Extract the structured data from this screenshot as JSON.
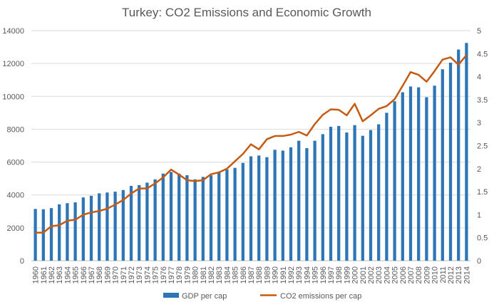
{
  "chart_data": {
    "type": "bar+line",
    "title": "Turkey: CO2 Emissions and Economic Growth",
    "xlabel": "",
    "ylabel": "",
    "y2label": "",
    "ylim": [
      0,
      14000
    ],
    "y2lim": [
      0,
      5
    ],
    "yticks": [
      "0",
      "2000",
      "4000",
      "6000",
      "8000",
      "10000",
      "12000",
      "14000"
    ],
    "y2ticks": [
      "0",
      "0.5",
      "1",
      "1.5",
      "2",
      "2.5",
      "3",
      "3.5",
      "4",
      "4.5",
      "5"
    ],
    "grid": true,
    "legend_position": "bottom",
    "categories": [
      "1960",
      "1961",
      "1962",
      "1963",
      "1964",
      "1965",
      "1966",
      "1967",
      "1968",
      "1969",
      "1970",
      "1971",
      "1972",
      "1973",
      "1974",
      "1975",
      "1976",
      "1977",
      "1978",
      "1979",
      "1980",
      "1981",
      "1982",
      "1983",
      "1984",
      "1985",
      "1986",
      "1987",
      "1988",
      "1989",
      "1990",
      "1991",
      "1992",
      "1993",
      "1994",
      "1995",
      "1996",
      "1997",
      "1998",
      "1999",
      "2000",
      "2001",
      "2002",
      "2003",
      "2004",
      "2005",
      "2006",
      "2007",
      "2008",
      "2009",
      "2010",
      "2011",
      "2012",
      "2013",
      "2014"
    ],
    "series": [
      {
        "name": "GDP per cap",
        "type": "bar",
        "axis": "left",
        "color": "#2e75b6",
        "values": [
          3150,
          3130,
          3200,
          3430,
          3500,
          3550,
          3850,
          3950,
          4100,
          4150,
          4200,
          4300,
          4550,
          4600,
          4750,
          4950,
          5300,
          5400,
          5300,
          5200,
          4950,
          5100,
          5200,
          5400,
          5550,
          5650,
          5950,
          6350,
          6400,
          6300,
          6750,
          6700,
          6900,
          7300,
          6850,
          7300,
          7700,
          8150,
          8200,
          7800,
          8250,
          7600,
          7950,
          8300,
          9000,
          9700,
          10250,
          10600,
          10550,
          9950,
          10650,
          11650,
          12050,
          12850,
          13250
        ]
      },
      {
        "name": "CO2 emissions per cap",
        "type": "line",
        "axis": "right",
        "color": "#c55a11",
        "values": [
          0.61,
          0.61,
          0.75,
          0.77,
          0.87,
          0.89,
          1.0,
          1.05,
          1.08,
          1.13,
          1.22,
          1.32,
          1.46,
          1.57,
          1.57,
          1.68,
          1.81,
          1.98,
          1.87,
          1.75,
          1.73,
          1.75,
          1.88,
          1.92,
          2.0,
          2.16,
          2.32,
          2.53,
          2.42,
          2.64,
          2.71,
          2.71,
          2.74,
          2.8,
          2.72,
          2.97,
          3.17,
          3.29,
          3.28,
          3.16,
          3.41,
          3.03,
          3.16,
          3.3,
          3.36,
          3.51,
          3.8,
          4.1,
          4.04,
          3.89,
          4.12,
          4.37,
          4.42,
          4.26,
          4.47
        ]
      }
    ]
  }
}
